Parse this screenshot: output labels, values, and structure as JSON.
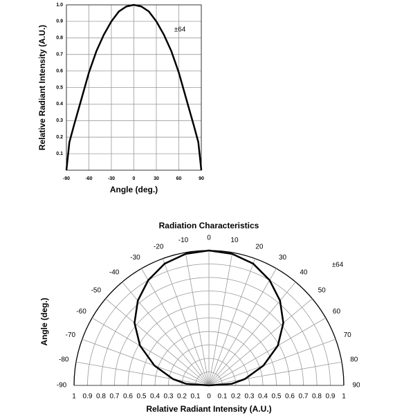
{
  "chart_data": [
    {
      "type": "line",
      "xlabel": "Angle (deg.)",
      "ylabel": "Relative Radiant Intensity (A.U.)",
      "annotation": "±64",
      "x": [
        -90,
        -86,
        -80,
        -70,
        -60,
        -50,
        -40,
        -30,
        -20,
        -10,
        0,
        10,
        20,
        30,
        40,
        50,
        60,
        70,
        80,
        86,
        90
      ],
      "values": [
        0,
        0.17,
        0.27,
        0.43,
        0.59,
        0.72,
        0.82,
        0.9,
        0.96,
        0.99,
        1,
        0.99,
        0.96,
        0.9,
        0.82,
        0.72,
        0.59,
        0.43,
        0.27,
        0.17,
        0
      ],
      "color": "#000000",
      "xlim": [
        -90,
        90
      ],
      "xticks": [
        -90,
        -60,
        -30,
        0,
        30,
        60,
        90
      ],
      "ylim": [
        0,
        1
      ],
      "yticks": [
        0.1,
        0.2,
        0.3,
        0.4,
        0.5,
        0.6,
        0.7,
        0.8,
        0.9,
        {
          "value": 1,
          "label": "1.0"
        }
      ],
      "grid": true
    },
    {
      "type": "polar",
      "title": "Radiation Characteristics",
      "xlabel": "Relative Radiant Intensity (A.U.)",
      "ylabel": "Angle (deg.)",
      "annotation": "±64",
      "x": [
        -90,
        -86,
        -80,
        -70,
        -60,
        -50,
        -40,
        -30,
        -20,
        -10,
        0,
        10,
        20,
        30,
        40,
        50,
        60,
        70,
        80,
        86,
        90
      ],
      "values": [
        0,
        0.17,
        0.27,
        0.43,
        0.59,
        0.72,
        0.82,
        0.9,
        0.96,
        0.99,
        1,
        0.99,
        0.96,
        0.9,
        0.82,
        0.72,
        0.59,
        0.43,
        0.27,
        0.17,
        0
      ],
      "color": "#000000",
      "xlim": [
        -90,
        90
      ],
      "xticks": [
        -90,
        -80,
        -70,
        -60,
        -50,
        -40,
        -30,
        -20,
        -10,
        0,
        10,
        20,
        30,
        40,
        50,
        60,
        70,
        80,
        90
      ],
      "rlim": [
        0,
        1
      ],
      "rticks": [
        0,
        0.1,
        0.2,
        0.3,
        0.4,
        0.5,
        0.6,
        0.7,
        0.8,
        0.9,
        1
      ],
      "grid": true
    }
  ]
}
